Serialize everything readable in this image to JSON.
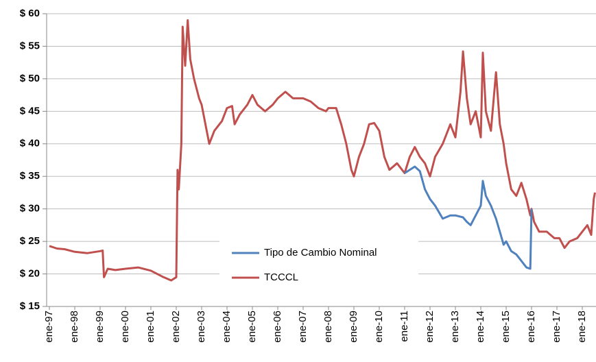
{
  "chart_data": {
    "type": "line",
    "x": [
      1997.0,
      1997.3,
      1997.6,
      1998.0,
      1998.5,
      1999.0,
      1999.1,
      1999.15,
      1999.3,
      1999.6,
      2000.0,
      2000.5,
      2001.0,
      2001.5,
      2001.8,
      2002.0,
      2002.05,
      2002.1,
      2002.2,
      2002.25,
      2002.35,
      2002.45,
      2002.55,
      2002.7,
      2002.9,
      2003.0,
      2003.2,
      2003.3,
      2003.5,
      2003.8,
      2004.0,
      2004.2,
      2004.3,
      2004.5,
      2004.8,
      2005.0,
      2005.2,
      2005.5,
      2005.8,
      2006.0,
      2006.3,
      2006.6,
      2007.0,
      2007.3,
      2007.6,
      2007.9,
      2008.0,
      2008.3,
      2008.5,
      2008.7,
      2008.9,
      2009.0,
      2009.2,
      2009.4,
      2009.6,
      2009.8,
      2010.0,
      2010.2,
      2010.4,
      2010.7,
      2011.0,
      2011.2,
      2011.4,
      2011.6,
      2011.8,
      2012.0,
      2012.2,
      2012.5,
      2012.8,
      2013.0,
      2013.2,
      2013.3,
      2013.45,
      2013.6,
      2013.8,
      2014.0,
      2014.08,
      2014.2,
      2014.4,
      2014.6,
      2014.75,
      2014.9,
      2015.0,
      2015.2,
      2015.4,
      2015.6,
      2015.8,
      2015.95,
      2016.0,
      2016.1,
      2016.3,
      2016.6,
      2016.9,
      2017.1,
      2017.3,
      2017.5,
      2017.8,
      2018.0,
      2018.2,
      2018.35,
      2018.45,
      2018.5
    ],
    "series": [
      {
        "name": "Tipo de Cambio Nominal",
        "color": "#4f81bd",
        "values": [
          null,
          null,
          null,
          null,
          null,
          null,
          null,
          null,
          null,
          null,
          null,
          null,
          null,
          null,
          null,
          null,
          null,
          null,
          null,
          null,
          null,
          null,
          null,
          null,
          null,
          null,
          null,
          null,
          null,
          null,
          null,
          null,
          null,
          null,
          null,
          null,
          null,
          null,
          null,
          null,
          null,
          null,
          null,
          null,
          null,
          null,
          null,
          null,
          null,
          null,
          null,
          null,
          null,
          null,
          null,
          null,
          null,
          null,
          null,
          null,
          35.5,
          36,
          36.5,
          35.8,
          33,
          31.5,
          30.5,
          28.5,
          29,
          29,
          28.8,
          28.7,
          28,
          27.5,
          29,
          30.5,
          34.3,
          32,
          30.5,
          28.5,
          26.5,
          24.5,
          25,
          23.5,
          23,
          22,
          21,
          20.8,
          30,
          null,
          null,
          null,
          null,
          null,
          null,
          null,
          null,
          null,
          null,
          null,
          null,
          null
        ]
      },
      {
        "name": "TCCCL",
        "color": "#c0504d",
        "values": [
          24.3,
          23.9,
          23.8,
          23.4,
          23.2,
          23.5,
          23.6,
          19.5,
          20.8,
          20.6,
          20.8,
          21.0,
          20.5,
          19.5,
          19.0,
          19.5,
          36,
          33,
          40,
          58,
          52,
          59,
          53,
          50,
          47,
          46,
          42,
          40,
          42,
          43.5,
          45.5,
          45.8,
          43,
          44.5,
          46,
          47.5,
          46,
          45,
          46,
          47,
          48,
          47,
          47,
          46.5,
          45.5,
          45,
          45.5,
          45.5,
          43,
          40,
          36,
          35,
          38,
          40,
          43,
          43.2,
          42,
          38,
          36,
          37,
          35.5,
          38,
          39.5,
          38,
          37,
          35,
          38,
          40,
          43,
          41,
          48,
          54.2,
          47,
          43,
          45,
          41,
          54,
          45,
          42,
          51,
          43,
          40,
          37,
          33,
          32,
          34,
          31.5,
          29,
          30,
          28,
          26.5,
          26.5,
          25.5,
          25.5,
          24,
          25,
          25.5,
          26.5,
          27.5,
          26,
          31.5,
          32.5
        ]
      }
    ],
    "xlim": [
      1997,
      2018.54
    ],
    "xticks": [
      {
        "value": 1997,
        "label": "ene-97"
      },
      {
        "value": 1998,
        "label": "ene-98"
      },
      {
        "value": 1999,
        "label": "ene-99"
      },
      {
        "value": 2000,
        "label": "ene-00"
      },
      {
        "value": 2001,
        "label": "ene-01"
      },
      {
        "value": 2002,
        "label": "ene-02"
      },
      {
        "value": 2003,
        "label": "ene-03"
      },
      {
        "value": 2004,
        "label": "ene-04"
      },
      {
        "value": 2005,
        "label": "ene-05"
      },
      {
        "value": 2006,
        "label": "ene-06"
      },
      {
        "value": 2007,
        "label": "ene-07"
      },
      {
        "value": 2008,
        "label": "ene-08"
      },
      {
        "value": 2009,
        "label": "ene-09"
      },
      {
        "value": 2010,
        "label": "ene-10"
      },
      {
        "value": 2011,
        "label": "ene-11"
      },
      {
        "value": 2012,
        "label": "ene-12"
      },
      {
        "value": 2013,
        "label": "ene-13"
      },
      {
        "value": 2014,
        "label": "ene-14"
      },
      {
        "value": 2015,
        "label": "ene-15"
      },
      {
        "value": 2016,
        "label": "ene-16"
      },
      {
        "value": 2017,
        "label": "ene-17"
      },
      {
        "value": 2018,
        "label": "ene-18"
      }
    ],
    "ylim": [
      15,
      60
    ],
    "yticks": [
      {
        "value": 15,
        "label": "$ 15"
      },
      {
        "value": 20,
        "label": "$ 20"
      },
      {
        "value": 25,
        "label": "$ 25"
      },
      {
        "value": 30,
        "label": "$ 30"
      },
      {
        "value": 35,
        "label": "$ 35"
      },
      {
        "value": 40,
        "label": "$ 40"
      },
      {
        "value": 45,
        "label": "$ 45"
      },
      {
        "value": 50,
        "label": "$ 50"
      },
      {
        "value": 55,
        "label": "$ 55"
      },
      {
        "value": 60,
        "label": "$ 60"
      }
    ],
    "grid": true,
    "legend": "bottom-center"
  }
}
